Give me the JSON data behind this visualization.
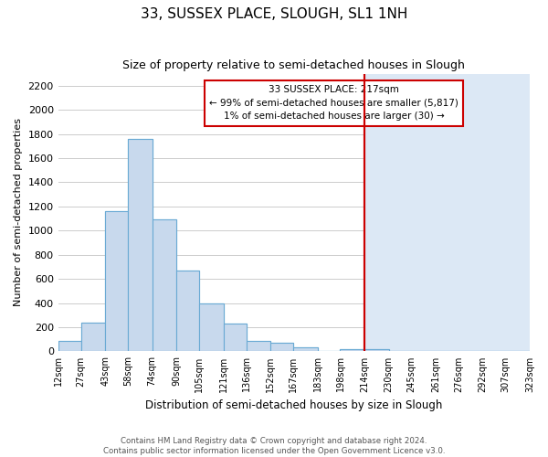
{
  "title": "33, SUSSEX PLACE, SLOUGH, SL1 1NH",
  "subtitle": "Size of property relative to semi-detached houses in Slough",
  "xlabel": "Distribution of semi-detached houses by size in Slough",
  "ylabel": "Number of semi-detached properties",
  "bar_edges": [
    12,
    27,
    43,
    58,
    74,
    90,
    105,
    121,
    136,
    152,
    167,
    183,
    198,
    214,
    230,
    245,
    261,
    276,
    292,
    307,
    323
  ],
  "bar_heights": [
    90,
    240,
    1160,
    1760,
    1090,
    670,
    400,
    230,
    85,
    70,
    30,
    0,
    20,
    15,
    0,
    0,
    0,
    0,
    0,
    0
  ],
  "bar_color": "#c8d9ed",
  "bar_edge_color": "#6aaad4",
  "vline_x": 214,
  "vline_color": "#cc0000",
  "bg_left_color": "#ffffff",
  "bg_right_color": "#dce8f5",
  "ylim": [
    0,
    2300
  ],
  "yticks": [
    0,
    200,
    400,
    600,
    800,
    1000,
    1200,
    1400,
    1600,
    1800,
    2000,
    2200
  ],
  "tick_labels": [
    "12sqm",
    "27sqm",
    "43sqm",
    "58sqm",
    "74sqm",
    "90sqm",
    "105sqm",
    "121sqm",
    "136sqm",
    "152sqm",
    "167sqm",
    "183sqm",
    "198sqm",
    "214sqm",
    "230sqm",
    "245sqm",
    "261sqm",
    "276sqm",
    "292sqm",
    "307sqm",
    "323sqm"
  ],
  "annotation_title": "33 SUSSEX PLACE: 217sqm",
  "annotation_line1": "← 99% of semi-detached houses are smaller (5,817)",
  "annotation_line2": "1% of semi-detached houses are larger (30) →",
  "annotation_box_color": "#ffffff",
  "annotation_box_edge": "#cc0000",
  "grid_color": "#cccccc",
  "footer1": "Contains HM Land Registry data © Crown copyright and database right 2024.",
  "footer2": "Contains public sector information licensed under the Open Government Licence v3.0."
}
